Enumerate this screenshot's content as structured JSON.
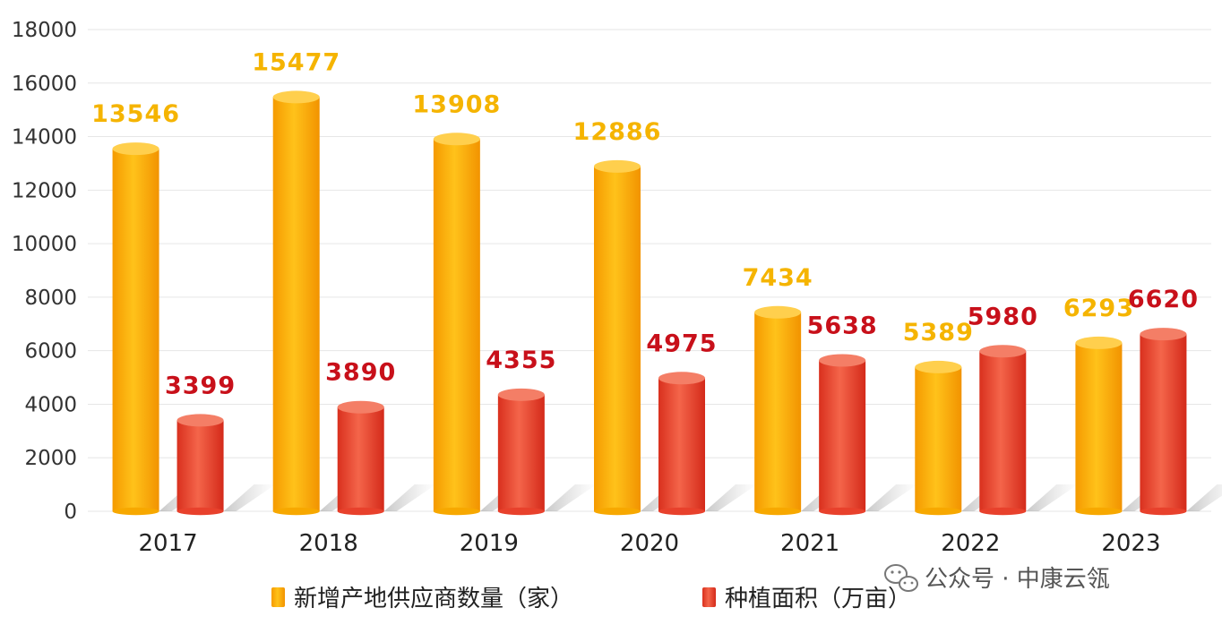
{
  "chart_data": {
    "type": "bar",
    "categories": [
      "2017",
      "2018",
      "2019",
      "2020",
      "2021",
      "2022",
      "2023"
    ],
    "series": [
      {
        "name": "新增产地供应商数量（家）",
        "values": [
          13546,
          15477,
          13908,
          12886,
          7434,
          5389,
          6293
        ],
        "color": "#f7a800",
        "label_color": "#f5b400"
      },
      {
        "name": "种植面积（万亩）",
        "values": [
          3399,
          3890,
          4355,
          4975,
          5638,
          5980,
          6620
        ],
        "color": "#e8412c",
        "label_color": "#c8101a"
      }
    ],
    "ylim": [
      0,
      18000
    ],
    "yticks": [
      0,
      2000,
      4000,
      6000,
      8000,
      10000,
      12000,
      14000,
      16000,
      18000
    ],
    "grid": true,
    "legend_position": "bottom",
    "title": "",
    "xlabel": "",
    "ylabel": ""
  },
  "watermark": {
    "text": "公众号 · 中康云瓴",
    "icon": "wechat-icon"
  }
}
